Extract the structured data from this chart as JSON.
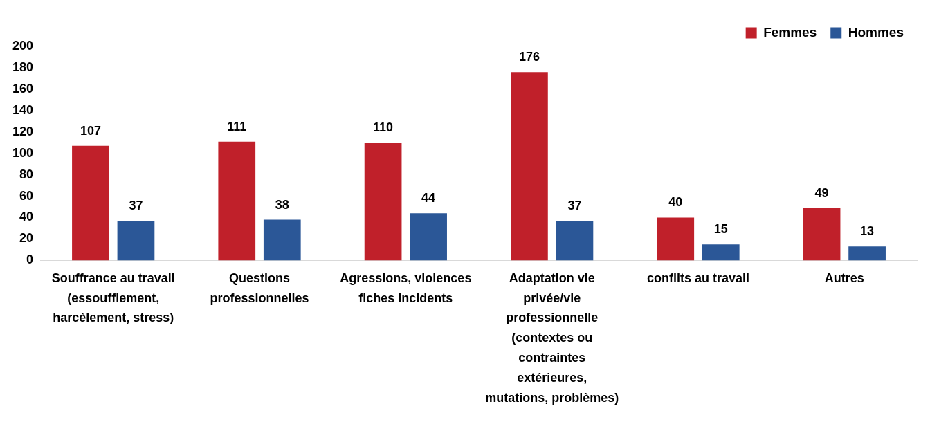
{
  "chart_data": {
    "type": "bar",
    "categories": [
      "Souffrance au travail (essoufflement, harcèlement, stress)",
      "Questions professionnelles",
      "Agressions, violences fiches incidents",
      "Adaptation vie privée/vie professionnelle (contextes ou contraintes extérieures, mutations, problèmes)",
      "conflits au travail",
      "Autres"
    ],
    "series": [
      {
        "name": "Femmes",
        "color": "#c0202a",
        "values": [
          107,
          111,
          110,
          176,
          40,
          49
        ]
      },
      {
        "name": "Hommes",
        "color": "#2b5797",
        "values": [
          37,
          38,
          44,
          37,
          15,
          13
        ]
      }
    ],
    "ylim": [
      0,
      200
    ],
    "yticks": [
      0,
      20,
      40,
      60,
      80,
      100,
      120,
      140,
      160,
      180,
      200
    ],
    "grid": false,
    "legend": "top right",
    "data_labels": true
  }
}
